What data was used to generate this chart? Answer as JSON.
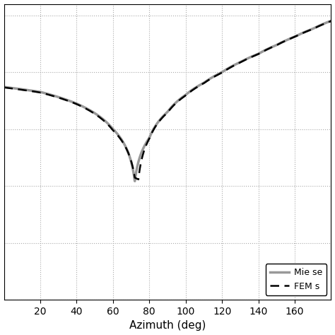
{
  "title": "",
  "xlabel": "Azimuth (deg)",
  "ylabel": "",
  "xlim": [
    0,
    180
  ],
  "xticks": [
    20,
    40,
    60,
    80,
    100,
    120,
    140,
    160
  ],
  "grid": true,
  "mie_color": "#999999",
  "fem_color": "#000000",
  "mie_linewidth": 2.5,
  "fem_linewidth": 1.8,
  "mie_label": "Mie se",
  "fem_label": "FEM s",
  "legend_loc": "lower right",
  "background": "#ffffff",
  "ylim": [
    -40,
    12
  ]
}
